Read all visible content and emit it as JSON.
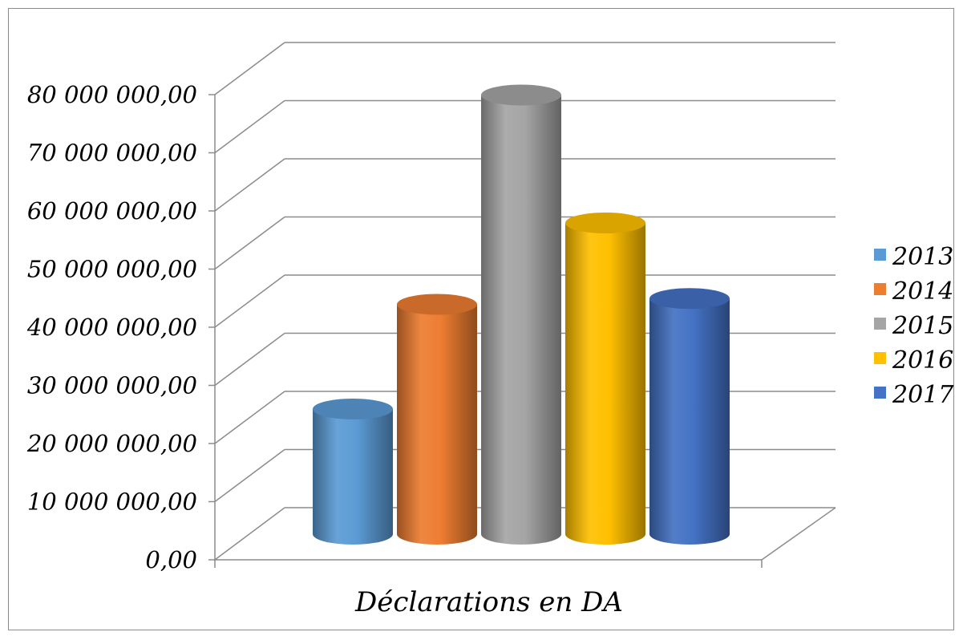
{
  "chart_data": {
    "type": "bar",
    "style": "3d-cylinder",
    "categories": [
      "Déclarations en DA"
    ],
    "series": [
      {
        "name": "2013",
        "values": [
          22000000
        ],
        "color": "#5B9BD5"
      },
      {
        "name": "2014",
        "values": [
          40000000
        ],
        "color": "#ED7D31"
      },
      {
        "name": "2015",
        "values": [
          76000000
        ],
        "color": "#A5A5A5"
      },
      {
        "name": "2016",
        "values": [
          54000000
        ],
        "color": "#FFC000"
      },
      {
        "name": "2017",
        "values": [
          41000000
        ],
        "color": "#4472C4"
      }
    ],
    "title": "",
    "xlabel": "Déclarations en DA",
    "ylabel": "",
    "ylim": [
      0,
      80000000
    ],
    "yticks": [
      0,
      10000000,
      20000000,
      30000000,
      40000000,
      50000000,
      60000000,
      70000000,
      80000000
    ],
    "ytick_labels": [
      "0,00",
      "10 000 000,00",
      "20 000 000,00",
      "30 000 000,00",
      "40 000 000,00",
      "50 000 000,00",
      "60 000 000,00",
      "70 000 000,00",
      "80 000 000,00"
    ],
    "grid": true,
    "legend": "right"
  }
}
